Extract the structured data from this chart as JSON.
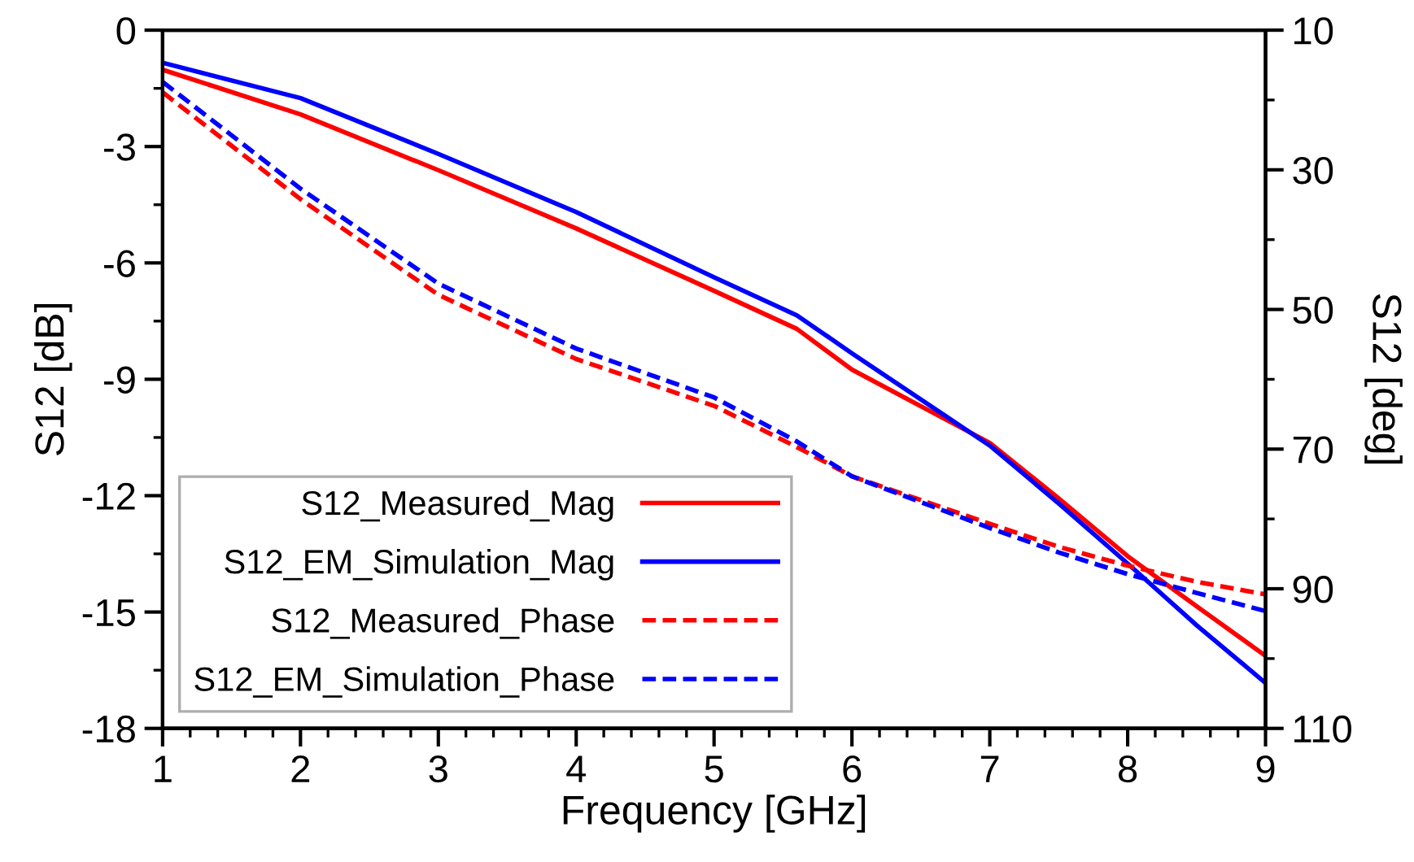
{
  "chart_data": {
    "type": "line",
    "xlabel": "Frequency [GHz]",
    "ylabel": "S12 [dB]",
    "y2label": "S12 [deg]",
    "x": [
      1,
      2,
      3,
      4,
      5,
      5.6,
      6,
      7,
      7.5,
      8,
      8.5,
      9
    ],
    "xlim": [
      1,
      9
    ],
    "xticks": [
      1,
      2,
      3,
      4,
      5,
      6,
      7,
      8,
      9
    ],
    "ylim": [
      -18,
      0
    ],
    "yticks": [
      -18,
      -15,
      -12,
      -9,
      -6,
      -3,
      0
    ],
    "y2lim": [
      110,
      10
    ],
    "y2ticks": [
      110,
      90,
      70,
      50,
      30,
      10
    ],
    "grid": false,
    "legend": "bottom left",
    "marker": "none",
    "series": [
      {
        "name": "S12_Measured_Mag",
        "color": "#ff0000",
        "line_style": "solid",
        "values": [
          -1.02,
          -2.17,
          -3.61,
          -5.11,
          -6.72,
          -7.7,
          -8.75,
          -10.64,
          -12.07,
          -13.56,
          -14.85,
          -16.13
        ]
      },
      {
        "name": "S12_EM_Simulation_Mag",
        "color": "#0000ff",
        "line_style": "solid",
        "values": [
          -0.84,
          -1.75,
          -3.19,
          -4.69,
          -6.37,
          -7.35,
          -8.33,
          -10.71,
          -12.2,
          -13.75,
          -15.34,
          -16.83
        ]
      },
      {
        "name": "S12_Measured_Phase",
        "color": "#ff0000",
        "line_style": "dashed",
        "axis": "y2",
        "values": [
          18.9,
          34.2,
          47.9,
          57.1,
          63.8,
          69.7,
          73.9,
          80.7,
          84,
          86.7,
          89,
          90.8
        ]
      },
      {
        "name": "S12_EM_Simulation_Phase",
        "color": "#0000ff",
        "line_style": "dashed",
        "axis": "y2",
        "values": [
          17.4,
          32.7,
          46.3,
          55.6,
          62.6,
          68.9,
          73.9,
          81.3,
          84.8,
          87.9,
          90.6,
          93.2
        ]
      }
    ]
  }
}
